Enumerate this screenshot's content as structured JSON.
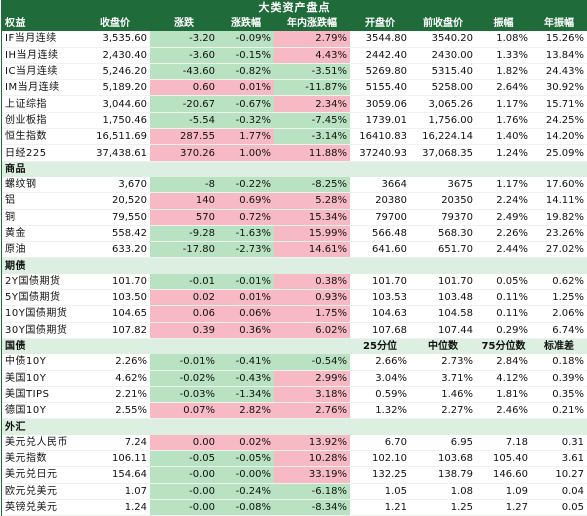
{
  "title": "大类资产盘点",
  "header": [
    "权益",
    "收盘价",
    "涨跌",
    "涨跌幅",
    "年内涨跌幅",
    "开盘价",
    "前收盘价",
    "振幅",
    "年振幅"
  ],
  "equity_rows": [
    {
      "cells": [
        "IF当月连续",
        "3,535.60",
        "-3.20",
        "-0.09%",
        "2.79%",
        "3544.80",
        "3540.20",
        "1.08%",
        "15.26%"
      ],
      "colors": [
        "",
        "",
        "g",
        "g",
        "r",
        "",
        "",
        "",
        ""
      ]
    },
    {
      "cells": [
        "IH当月连续",
        "2,430.40",
        "-3.60",
        "-0.15%",
        "4.43%",
        "2442.40",
        "2430.00",
        "1.33%",
        "13.84%"
      ],
      "colors": [
        "",
        "",
        "g",
        "g",
        "r",
        "",
        "",
        "",
        ""
      ]
    },
    {
      "cells": [
        "IC当月连续",
        "5,246.20",
        "-43.60",
        "-0.82%",
        "-3.51%",
        "5269.80",
        "5315.40",
        "1.82%",
        "24.43%"
      ],
      "colors": [
        "",
        "",
        "g",
        "g",
        "g",
        "",
        "",
        "",
        ""
      ]
    },
    {
      "cells": [
        "IM当月连续",
        "5,189.20",
        "0.60",
        "0.01%",
        "-11.87%",
        "5155.40",
        "5258.00",
        "2.64%",
        "30.92%"
      ],
      "colors": [
        "",
        "",
        "r",
        "r",
        "g",
        "",
        "",
        "",
        ""
      ]
    },
    {
      "cells": [
        "上证综指",
        "3,044.60",
        "-20.67",
        "-0.67%",
        "2.34%",
        "3059.06",
        "3,065.26",
        "1.17%",
        "15.71%"
      ],
      "colors": [
        "",
        "",
        "g",
        "g",
        "r",
        "",
        "",
        "",
        ""
      ]
    },
    {
      "cells": [
        "创业板指",
        "1,750.46",
        "-5.54",
        "-0.32%",
        "-7.45%",
        "1739.01",
        "1,756.00",
        "1.76%",
        "24.25%"
      ],
      "colors": [
        "",
        "",
        "g",
        "g",
        "g",
        "",
        "",
        "",
        ""
      ]
    },
    {
      "cells": [
        "恒生指数",
        "16,511.69",
        "287.55",
        "1.77%",
        "-3.14%",
        "16410.83",
        "16,224.14",
        "1.40%",
        "14.20%"
      ],
      "colors": [
        "",
        "",
        "r",
        "r",
        "g",
        "",
        "",
        "",
        ""
      ]
    },
    {
      "cells": [
        "日经225",
        "37,438.61",
        "370.26",
        "1.00%",
        "11.88%",
        "37240.93",
        "37,068.35",
        "1.24%",
        "25.09%"
      ],
      "colors": [
        "",
        "",
        "r",
        "r",
        "r",
        "",
        "",
        "",
        ""
      ]
    }
  ],
  "commodity_section": [
    "商品",
    "",
    "",
    "",
    "",
    "",
    "",
    "",
    ""
  ],
  "commodity_rows": [
    {
      "cells": [
        "螺纹钢",
        "3,670",
        "-8",
        "-0.22%",
        "-8.25%",
        "3664",
        "3675",
        "1.17%",
        "17.60%"
      ],
      "colors": [
        "",
        "",
        "g",
        "g",
        "g",
        "",
        "",
        "",
        ""
      ]
    },
    {
      "cells": [
        "铝",
        "20,520",
        "140",
        "0.69%",
        "5.28%",
        "20380",
        "20350",
        "2.24%",
        "14.11%"
      ],
      "colors": [
        "",
        "",
        "r",
        "r",
        "r",
        "",
        "",
        "",
        ""
      ]
    },
    {
      "cells": [
        "铜",
        "79,550",
        "570",
        "0.72%",
        "15.34%",
        "79700",
        "79370",
        "2.49%",
        "19.82%"
      ],
      "colors": [
        "",
        "",
        "r",
        "r",
        "r",
        "",
        "",
        "",
        ""
      ]
    },
    {
      "cells": [
        "黄金",
        "558.42",
        "-9.28",
        "-1.63%",
        "15.99%",
        "566.48",
        "568.30",
        "2.26%",
        "23.26%"
      ],
      "colors": [
        "",
        "",
        "g",
        "g",
        "r",
        "",
        "",
        "",
        ""
      ]
    },
    {
      "cells": [
        "原油",
        "633.20",
        "-17.80",
        "-2.73%",
        "14.61%",
        "641.60",
        "651.70",
        "2.44%",
        "27.02%"
      ],
      "colors": [
        "",
        "",
        "g",
        "g",
        "r",
        "",
        "",
        "",
        ""
      ]
    }
  ],
  "futures_section": [
    "期债",
    "",
    "",
    "",
    "",
    "",
    "",
    "",
    ""
  ],
  "futures_rows": [
    {
      "cells": [
        "2Y国债期货",
        "101.70",
        "-0.01",
        "-0.01%",
        "0.38%",
        "101.70",
        "101.70",
        "0.05%",
        "0.62%"
      ],
      "colors": [
        "",
        "",
        "g",
        "g",
        "r",
        "",
        "",
        "",
        ""
      ]
    },
    {
      "cells": [
        "5Y国债期货",
        "103.50",
        "0.02",
        "0.01%",
        "0.93%",
        "103.53",
        "103.48",
        "0.11%",
        "1.25%"
      ],
      "colors": [
        "",
        "",
        "r",
        "r",
        "r",
        "",
        "",
        "",
        ""
      ]
    },
    {
      "cells": [
        "10Y国债期货",
        "104.65",
        "0.06",
        "0.06%",
        "1.75%",
        "104.63",
        "104.58",
        "0.11%",
        "2.06%"
      ],
      "colors": [
        "",
        "",
        "r",
        "r",
        "r",
        "",
        "",
        "",
        ""
      ]
    },
    {
      "cells": [
        "30Y国债期货",
        "107.82",
        "0.39",
        "0.36%",
        "6.02%",
        "107.68",
        "107.44",
        "0.29%",
        "6.74%"
      ],
      "colors": [
        "",
        "",
        "r",
        "r",
        "r",
        "",
        "",
        "",
        ""
      ]
    }
  ],
  "bond_section": [
    "国债",
    "",
    "",
    "",
    "",
    "25分位",
    "中位数",
    "75分位数",
    "标准差"
  ],
  "bond_rows": [
    {
      "cells": [
        "中债10Y",
        "2.26%",
        "-0.01%",
        "-0.41%",
        "-0.54%",
        "2.66%",
        "2.73%",
        "2.84%",
        "0.18%"
      ],
      "colors": [
        "",
        "",
        "g",
        "g",
        "g",
        "",
        "",
        "",
        ""
      ]
    },
    {
      "cells": [
        "美国10Y",
        "4.62%",
        "-0.02%",
        "-0.43%",
        "2.99%",
        "3.04%",
        "3.71%",
        "4.12%",
        "0.39%"
      ],
      "colors": [
        "",
        "",
        "g",
        "g",
        "r",
        "",
        "",
        "",
        ""
      ]
    },
    {
      "cells": [
        "美国TIPS",
        "2.21%",
        "-0.03%",
        "-1.34%",
        "3.18%",
        "0.59%",
        "1.46%",
        "1.81%",
        "0.35%"
      ],
      "colors": [
        "",
        "",
        "g",
        "g",
        "r",
        "",
        "",
        "",
        ""
      ]
    },
    {
      "cells": [
        "德国10Y",
        "2.55%",
        "0.07%",
        "2.82%",
        "2.76%",
        "1.32%",
        "2.27%",
        "2.46%",
        "0.21%"
      ],
      "colors": [
        "",
        "",
        "r",
        "r",
        "r",
        "",
        "",
        "",
        ""
      ]
    }
  ],
  "fx_section": [
    "外汇",
    "",
    "",
    "",
    "",
    "",
    "",
    "",
    ""
  ],
  "fx_rows": [
    {
      "cells": [
        "美元兑人民币",
        "7.24",
        "0.00",
        "0.02%",
        "13.92%",
        "6.70",
        "6.95",
        "7.18",
        "0.31"
      ],
      "colors": [
        "",
        "",
        "r",
        "r",
        "r",
        "",
        "",
        "",
        ""
      ]
    },
    {
      "cells": [
        "美元指数",
        "106.11",
        "-0.05",
        "-0.05%",
        "10.28%",
        "102.10",
        "103.68",
        "105.40",
        "3.61"
      ],
      "colors": [
        "",
        "",
        "g",
        "g",
        "r",
        "",
        "",
        "",
        ""
      ]
    },
    {
      "cells": [
        "美元兑日元",
        "154.64",
        "-0.00",
        "-0.00%",
        "33.19%",
        "132.25",
        "138.79",
        "146.60",
        "10.27"
      ],
      "colors": [
        "",
        "",
        "g",
        "g",
        "r",
        "",
        "",
        "",
        ""
      ]
    },
    {
      "cells": [
        "欧元兑美元",
        "1.07",
        "-0.00",
        "-0.24%",
        "-6.18%",
        "1.05",
        "1.08",
        "1.09",
        "0.04"
      ],
      "colors": [
        "",
        "",
        "g",
        "g",
        "g",
        "",
        "",
        "",
        ""
      ]
    },
    {
      "cells": [
        "英镑兑美元",
        "1.24",
        "-0.00",
        "-0.08%",
        "-8.34%",
        "1.21",
        "1.25",
        "1.27",
        "0.05"
      ],
      "colors": [
        "",
        "",
        "g",
        "g",
        "g",
        "",
        "",
        "",
        ""
      ]
    }
  ],
  "colors": {
    "header_bg": "#1f6b3a",
    "section_bg": "#dcefe0",
    "up": "#f7b9c4",
    "down": "#b8e2c2"
  }
}
